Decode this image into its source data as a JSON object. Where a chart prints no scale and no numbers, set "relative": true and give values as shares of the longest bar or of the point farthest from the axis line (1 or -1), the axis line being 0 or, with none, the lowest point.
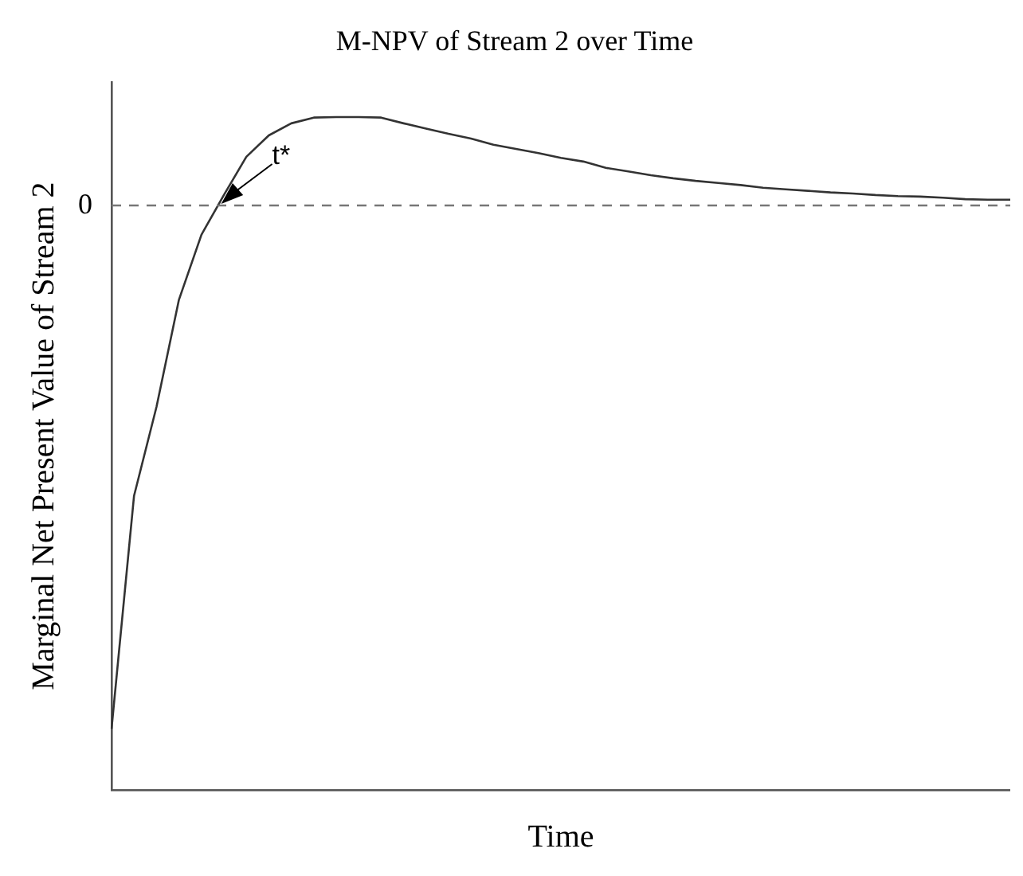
{
  "chart_data": {
    "type": "line",
    "title": "M-NPV of Stream 2 over Time",
    "xlabel": "Time",
    "ylabel": "Marginal Net Present Value of Stream 2",
    "relative": true,
    "categories": [
      null,
      null,
      null,
      null,
      null,
      null,
      null,
      null,
      null,
      null,
      null,
      null,
      null,
      null,
      null,
      null,
      null,
      null,
      null,
      null,
      null,
      null,
      null,
      null,
      null,
      null,
      null,
      null,
      null,
      null,
      null,
      null,
      null,
      null,
      null,
      null,
      null,
      null,
      null,
      null,
      null
    ],
    "series": [
      {
        "color": "#333333",
        "values": [
          -1.0,
          -0.555,
          -0.385,
          -0.18,
          -0.056,
          0.02,
          0.093,
          0.134,
          0.157,
          0.168,
          0.169,
          0.169,
          0.168,
          0.157,
          0.147,
          0.137,
          0.128,
          0.116,
          0.108,
          0.1,
          0.091,
          0.084,
          0.072,
          0.065,
          0.058,
          0.052,
          0.047,
          0.043,
          0.039,
          0.034,
          0.031,
          0.028,
          0.025,
          0.023,
          0.02,
          0.018,
          0.017,
          0.015,
          0.012,
          0.011,
          0.011
        ]
      }
    ],
    "ref_lines": [
      {
        "axis": "y",
        "value": 0,
        "label": "0",
        "color": "#777777",
        "line_style": "dashed"
      }
    ],
    "annotations": [
      {
        "text": "t*",
        "y": 0
      }
    ],
    "marker": "none",
    "line_style": "solid",
    "legend": false,
    "grid": false
  }
}
